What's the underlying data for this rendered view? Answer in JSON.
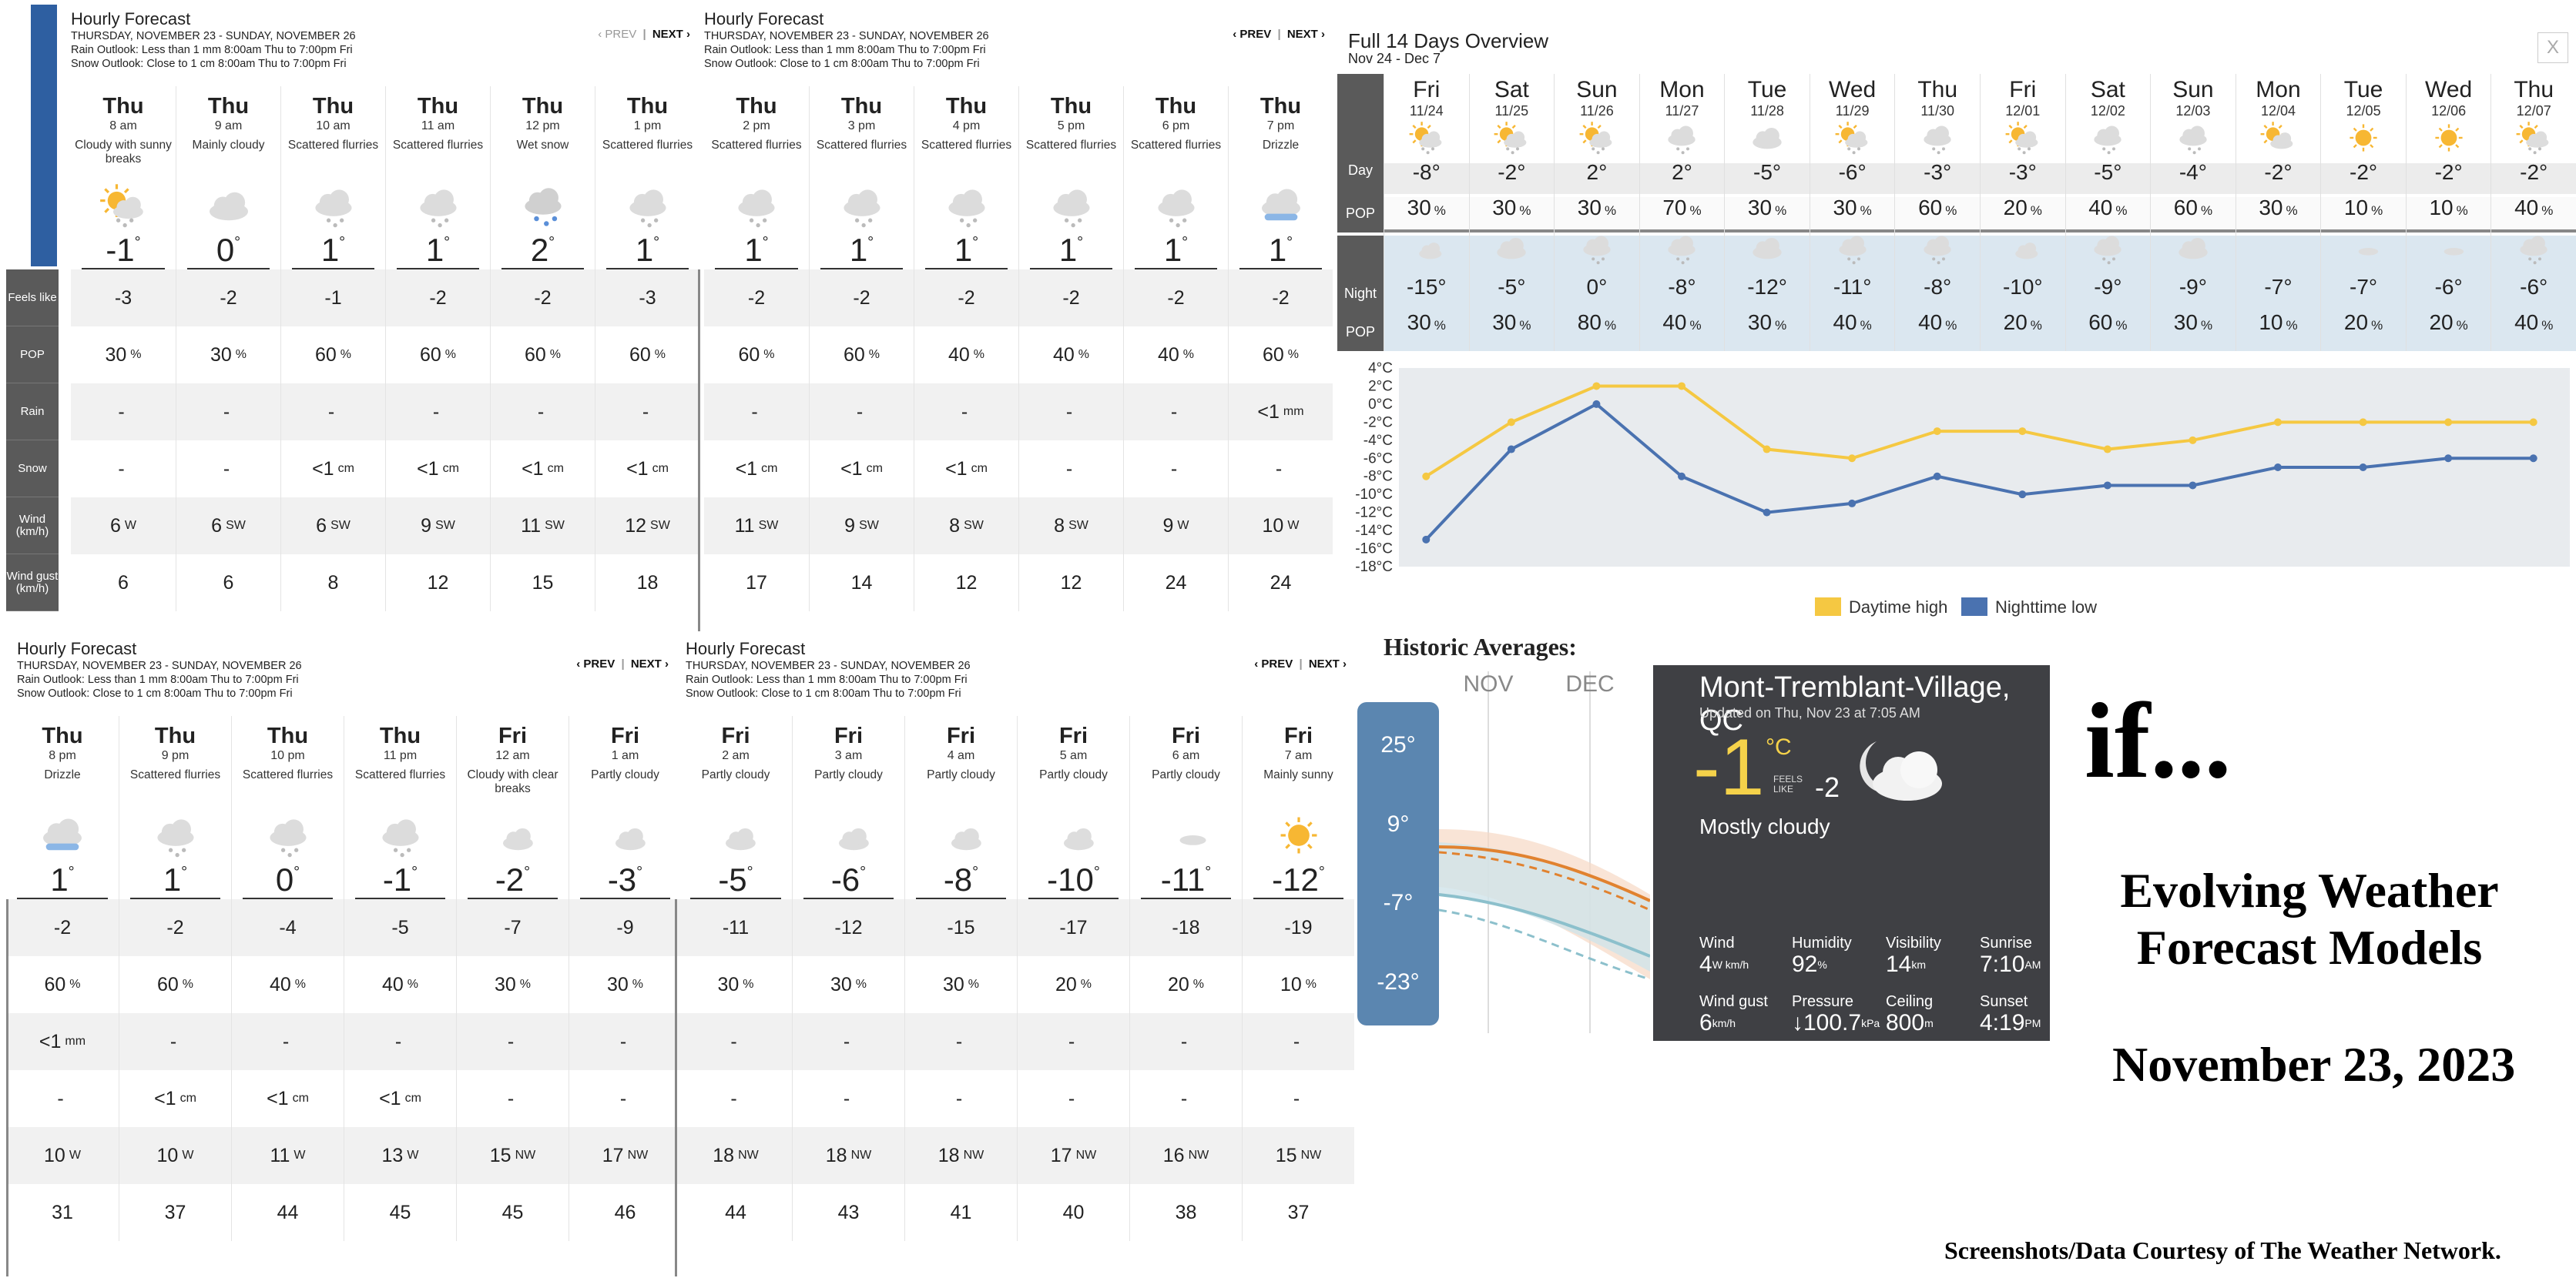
{
  "panel_common": {
    "title": "Hourly Forecast",
    "dates": "THURSDAY, NOVEMBER 23 - SUNDAY, NOVEMBER 26",
    "rain_outlook": "Rain Outlook: Less than 1 mm 8:00am Thu to 7:00pm Fri",
    "snow_outlook": "Snow Outlook: Close to 1 cm 8:00am Thu to 7:00pm Fri",
    "prev": "‹ PREV",
    "next": "NEXT ›",
    "sep": "|"
  },
  "row_labels": {
    "feels": "Feels like",
    "pop": "POP",
    "rain": "Rain",
    "snow": "Snow",
    "wind": "Wind (km/h)",
    "gust": "Wind gust (km/h)"
  },
  "hourly": [
    {
      "day": "Thu",
      "time": "8 am",
      "cond": "Cloudy with sunny breaks",
      "icon": "sun-cloud-snow",
      "temp": "-1",
      "feels": "-3",
      "pop": "30",
      "rain": "-",
      "rainu": "",
      "snow": "-",
      "snowu": "",
      "wind": "6",
      "dir": "W",
      "gust": "6"
    },
    {
      "day": "Thu",
      "time": "9 am",
      "cond": "Mainly cloudy",
      "icon": "cloud",
      "temp": "0",
      "feels": "-2",
      "pop": "30",
      "rain": "-",
      "rainu": "",
      "snow": "-",
      "snowu": "",
      "wind": "6",
      "dir": "SW",
      "gust": "6"
    },
    {
      "day": "Thu",
      "time": "10 am",
      "cond": "Scattered flurries",
      "icon": "cloud-snow",
      "temp": "1",
      "feels": "-1",
      "pop": "60",
      "rain": "-",
      "rainu": "",
      "snow": "<1",
      "snowu": "cm",
      "wind": "6",
      "dir": "SW",
      "gust": "8"
    },
    {
      "day": "Thu",
      "time": "11 am",
      "cond": "Scattered flurries",
      "icon": "cloud-snow",
      "temp": "1",
      "feels": "-2",
      "pop": "60",
      "rain": "-",
      "rainu": "",
      "snow": "<1",
      "snowu": "cm",
      "wind": "9",
      "dir": "SW",
      "gust": "12"
    },
    {
      "day": "Thu",
      "time": "12 pm",
      "cond": "Wet snow",
      "icon": "cloud-wetsnow",
      "temp": "2",
      "feels": "-2",
      "pop": "60",
      "rain": "-",
      "rainu": "",
      "snow": "<1",
      "snowu": "cm",
      "wind": "11",
      "dir": "SW",
      "gust": "15"
    },
    {
      "day": "Thu",
      "time": "1 pm",
      "cond": "Scattered flurries",
      "icon": "cloud-snow",
      "temp": "1",
      "feels": "-3",
      "pop": "60",
      "rain": "-",
      "rainu": "",
      "snow": "<1",
      "snowu": "cm",
      "wind": "12",
      "dir": "SW",
      "gust": "18"
    },
    {
      "day": "Thu",
      "time": "2 pm",
      "cond": "Scattered flurries",
      "icon": "cloud-snow",
      "temp": "1",
      "feels": "-2",
      "pop": "60",
      "rain": "-",
      "rainu": "",
      "snow": "<1",
      "snowu": "cm",
      "wind": "11",
      "dir": "SW",
      "gust": "17"
    },
    {
      "day": "Thu",
      "time": "3 pm",
      "cond": "Scattered flurries",
      "icon": "cloud-snow",
      "temp": "1",
      "feels": "-2",
      "pop": "60",
      "rain": "-",
      "rainu": "",
      "snow": "<1",
      "snowu": "cm",
      "wind": "9",
      "dir": "SW",
      "gust": "14"
    },
    {
      "day": "Thu",
      "time": "4 pm",
      "cond": "Scattered flurries",
      "icon": "cloud-snow",
      "temp": "1",
      "feels": "-2",
      "pop": "40",
      "rain": "-",
      "rainu": "",
      "snow": "<1",
      "snowu": "cm",
      "wind": "8",
      "dir": "SW",
      "gust": "12"
    },
    {
      "day": "Thu",
      "time": "5 pm",
      "cond": "Scattered flurries",
      "icon": "cloud-snow",
      "temp": "1",
      "feels": "-2",
      "pop": "40",
      "rain": "-",
      "rainu": "",
      "snow": "-",
      "snowu": "",
      "wind": "8",
      "dir": "SW",
      "gust": "12"
    },
    {
      "day": "Thu",
      "time": "6 pm",
      "cond": "Scattered flurries",
      "icon": "cloud-snow",
      "temp": "1",
      "feels": "-2",
      "pop": "40",
      "rain": "-",
      "rainu": "",
      "snow": "-",
      "snowu": "",
      "wind": "9",
      "dir": "W",
      "gust": "24"
    },
    {
      "day": "Thu",
      "time": "7 pm",
      "cond": "Drizzle",
      "icon": "cloud-drizzle",
      "temp": "1",
      "feels": "-2",
      "pop": "60",
      "rain": "<1",
      "rainu": "mm",
      "snow": "-",
      "snowu": "",
      "wind": "10",
      "dir": "W",
      "gust": "24"
    },
    {
      "day": "Thu",
      "time": "8 pm",
      "cond": "Drizzle",
      "icon": "cloud-drizzle",
      "temp": "1",
      "feels": "-2",
      "pop": "60",
      "rain": "<1",
      "rainu": "mm",
      "snow": "-",
      "snowu": "",
      "wind": "10",
      "dir": "W",
      "gust": "31"
    },
    {
      "day": "Thu",
      "time": "9 pm",
      "cond": "Scattered flurries",
      "icon": "cloud-snow",
      "temp": "1",
      "feels": "-2",
      "pop": "60",
      "rain": "-",
      "rainu": "",
      "snow": "<1",
      "snowu": "cm",
      "wind": "10",
      "dir": "W",
      "gust": "37"
    },
    {
      "day": "Thu",
      "time": "10 pm",
      "cond": "Scattered flurries",
      "icon": "cloud-snow",
      "temp": "0",
      "feels": "-4",
      "pop": "40",
      "rain": "-",
      "rainu": "",
      "snow": "<1",
      "snowu": "cm",
      "wind": "11",
      "dir": "W",
      "gust": "44"
    },
    {
      "day": "Thu",
      "time": "11 pm",
      "cond": "Scattered flurries",
      "icon": "cloud-snow",
      "temp": "-1",
      "feels": "-5",
      "pop": "40",
      "rain": "-",
      "rainu": "",
      "snow": "<1",
      "snowu": "cm",
      "wind": "13",
      "dir": "W",
      "gust": "45"
    },
    {
      "day": "Fri",
      "time": "12 am",
      "cond": "Cloudy with clear breaks",
      "icon": "moon-cloud",
      "temp": "-2",
      "feels": "-7",
      "pop": "30",
      "rain": "-",
      "rainu": "",
      "snow": "-",
      "snowu": "",
      "wind": "15",
      "dir": "NW",
      "gust": "45"
    },
    {
      "day": "Fri",
      "time": "1 am",
      "cond": "Partly cloudy",
      "icon": "moon-cloud",
      "temp": "-3",
      "feels": "-9",
      "pop": "30",
      "rain": "-",
      "rainu": "",
      "snow": "-",
      "snowu": "",
      "wind": "17",
      "dir": "NW",
      "gust": "46"
    },
    {
      "day": "Fri",
      "time": "2 am",
      "cond": "Partly cloudy",
      "icon": "moon-cloud",
      "temp": "-5",
      "feels": "-11",
      "pop": "30",
      "rain": "-",
      "rainu": "",
      "snow": "-",
      "snowu": "",
      "wind": "18",
      "dir": "NW",
      "gust": "44"
    },
    {
      "day": "Fri",
      "time": "3 am",
      "cond": "Partly cloudy",
      "icon": "moon-cloud",
      "temp": "-6",
      "feels": "-12",
      "pop": "30",
      "rain": "-",
      "rainu": "",
      "snow": "-",
      "snowu": "",
      "wind": "18",
      "dir": "NW",
      "gust": "43"
    },
    {
      "day": "Fri",
      "time": "4 am",
      "cond": "Partly cloudy",
      "icon": "moon-cloud",
      "temp": "-8",
      "feels": "-15",
      "pop": "30",
      "rain": "-",
      "rainu": "",
      "snow": "-",
      "snowu": "",
      "wind": "18",
      "dir": "NW",
      "gust": "41"
    },
    {
      "day": "Fri",
      "time": "5 am",
      "cond": "Partly cloudy",
      "icon": "moon-cloud",
      "temp": "-10",
      "feels": "-17",
      "pop": "20",
      "rain": "-",
      "rainu": "",
      "snow": "-",
      "snowu": "",
      "wind": "17",
      "dir": "NW",
      "gust": "40"
    },
    {
      "day": "Fri",
      "time": "6 am",
      "cond": "Partly cloudy",
      "icon": "moon-cloud-thin",
      "temp": "-11",
      "feels": "-18",
      "pop": "20",
      "rain": "-",
      "rainu": "",
      "snow": "-",
      "snowu": "",
      "wind": "16",
      "dir": "NW",
      "gust": "38"
    },
    {
      "day": "Fri",
      "time": "7 am",
      "cond": "Mainly sunny",
      "icon": "sun",
      "temp": "-12",
      "feels": "-19",
      "pop": "10",
      "rain": "-",
      "rainu": "",
      "snow": "-",
      "snowu": "",
      "wind": "15",
      "dir": "NW",
      "gust": "37"
    }
  ],
  "full14": {
    "title": "Full 14 Days Overview",
    "range": "Nov 24 - Dec 7",
    "close": "X",
    "day_label": "Day",
    "night_label": "Night",
    "pop_label": "POP",
    "days": [
      {
        "d": "Fri",
        "date": "11/24",
        "hi": "-8",
        "dpop": "30",
        "lo": "-15",
        "npop": "30",
        "dicon": "sun-cloud-snow",
        "nicon": "moon-cloud"
      },
      {
        "d": "Sat",
        "date": "11/25",
        "hi": "-2",
        "dpop": "30",
        "lo": "-5",
        "npop": "30",
        "dicon": "sun-cloud-snow",
        "nicon": "cloud"
      },
      {
        "d": "Sun",
        "date": "11/26",
        "hi": "2",
        "dpop": "30",
        "lo": "0",
        "npop": "80",
        "dicon": "sun-cloud-snow",
        "nicon": "cloud-snow"
      },
      {
        "d": "Mon",
        "date": "11/27",
        "hi": "2",
        "dpop": "70",
        "lo": "-8",
        "npop": "40",
        "dicon": "cloud-snow",
        "nicon": "cloud-snow"
      },
      {
        "d": "Tue",
        "date": "11/28",
        "hi": "-5",
        "dpop": "30",
        "lo": "-12",
        "npop": "30",
        "dicon": "cloud",
        "nicon": "cloud"
      },
      {
        "d": "Wed",
        "date": "11/29",
        "hi": "-6",
        "dpop": "30",
        "lo": "-11",
        "npop": "40",
        "dicon": "sun-cloud-snow",
        "nicon": "cloud-snow"
      },
      {
        "d": "Thu",
        "date": "11/30",
        "hi": "-3",
        "dpop": "60",
        "lo": "-8",
        "npop": "40",
        "dicon": "cloud-snow",
        "nicon": "cloud-snow"
      },
      {
        "d": "Fri",
        "date": "12/01",
        "hi": "-3",
        "dpop": "20",
        "lo": "-10",
        "npop": "20",
        "dicon": "sun-cloud-snow",
        "nicon": "moon-cloud"
      },
      {
        "d": "Sat",
        "date": "12/02",
        "hi": "-5",
        "dpop": "40",
        "lo": "-9",
        "npop": "60",
        "dicon": "cloud-snow",
        "nicon": "cloud-snow"
      },
      {
        "d": "Sun",
        "date": "12/03",
        "hi": "-4",
        "dpop": "60",
        "lo": "-9",
        "npop": "30",
        "dicon": "cloud-snow",
        "nicon": "cloud"
      },
      {
        "d": "Mon",
        "date": "12/04",
        "hi": "-2",
        "dpop": "30",
        "lo": "-7",
        "npop": "10",
        "dicon": "sun-cloud",
        "nicon": "moon"
      },
      {
        "d": "Tue",
        "date": "12/05",
        "hi": "-2",
        "dpop": "10",
        "lo": "-7",
        "npop": "20",
        "dicon": "sun",
        "nicon": "moon-cloud-thin"
      },
      {
        "d": "Wed",
        "date": "12/06",
        "hi": "-2",
        "dpop": "10",
        "lo": "-6",
        "npop": "20",
        "dicon": "sun",
        "nicon": "moon-cloud-thin"
      },
      {
        "d": "Thu",
        "date": "12/07",
        "hi": "-2",
        "dpop": "40",
        "lo": "-6",
        "npop": "40",
        "dicon": "sun-cloud-snow",
        "nicon": "cloud-snow"
      }
    ]
  },
  "chart_data": {
    "type": "line",
    "title": "",
    "xlabel": "",
    "ylabel": "",
    "x": [
      "11/24",
      "11/25",
      "11/26",
      "11/27",
      "11/28",
      "11/29",
      "11/30",
      "12/01",
      "12/02",
      "12/03",
      "12/04",
      "12/05",
      "12/06",
      "12/07"
    ],
    "yticks": [
      "4°C",
      "2°C",
      "0°C",
      "-2°C",
      "-4°C",
      "-6°C",
      "-8°C",
      "-10°C",
      "-12°C",
      "-14°C",
      "-16°C",
      "-18°C"
    ],
    "ylim": [
      -18,
      4
    ],
    "series": [
      {
        "name": "Daytime high",
        "color": "#f5c842",
        "values": [
          -8,
          -2,
          2,
          2,
          -5,
          -6,
          -3,
          -3,
          -5,
          -4,
          -2,
          -2,
          -2,
          -2
        ]
      },
      {
        "name": "Nighttime low",
        "color": "#4a72b0",
        "values": [
          -15,
          -5,
          0,
          -8,
          -12,
          -11,
          -8,
          -10,
          -9,
          -9,
          -7,
          -7,
          -6,
          -6
        ]
      }
    ],
    "legend": "bottom"
  },
  "historic": {
    "title": "Historic Averages:",
    "months": [
      "NOV",
      "DEC"
    ],
    "scale": [
      "25°",
      "9°",
      "-7°",
      "-23°"
    ]
  },
  "current": {
    "location": "Mont-Tremblant-Village, QC",
    "updated": "Updated on Thu, Nov 23 at 7:05 AM",
    "temp": "-1",
    "unit": "°C",
    "feels_label": "FEELS LIKE",
    "feels": "-2",
    "cond": "Mostly cloudy",
    "stats": [
      {
        "label": "Wind",
        "value": "4",
        "unit": "W km/h"
      },
      {
        "label": "Humidity",
        "value": "92",
        "unit": "%"
      },
      {
        "label": "Visibility",
        "value": "14",
        "unit": "km"
      },
      {
        "label": "Sunrise",
        "value": "7:10",
        "unit": "AM"
      },
      {
        "label": "Wind gust",
        "value": "6",
        "unit": "km/h"
      },
      {
        "label": "Pressure",
        "value": "↓100.7",
        "unit": "kPa"
      },
      {
        "label": "Ceiling",
        "value": "800",
        "unit": "m"
      },
      {
        "label": "Sunset",
        "value": "4:19",
        "unit": "PM"
      }
    ]
  },
  "caption": {
    "if": "if...",
    "line1": "Evolving Weather",
    "line2": "Forecast Models",
    "date": "November 23, 2023",
    "credit": "Screenshots/Data Courtesy of The Weather Network."
  }
}
